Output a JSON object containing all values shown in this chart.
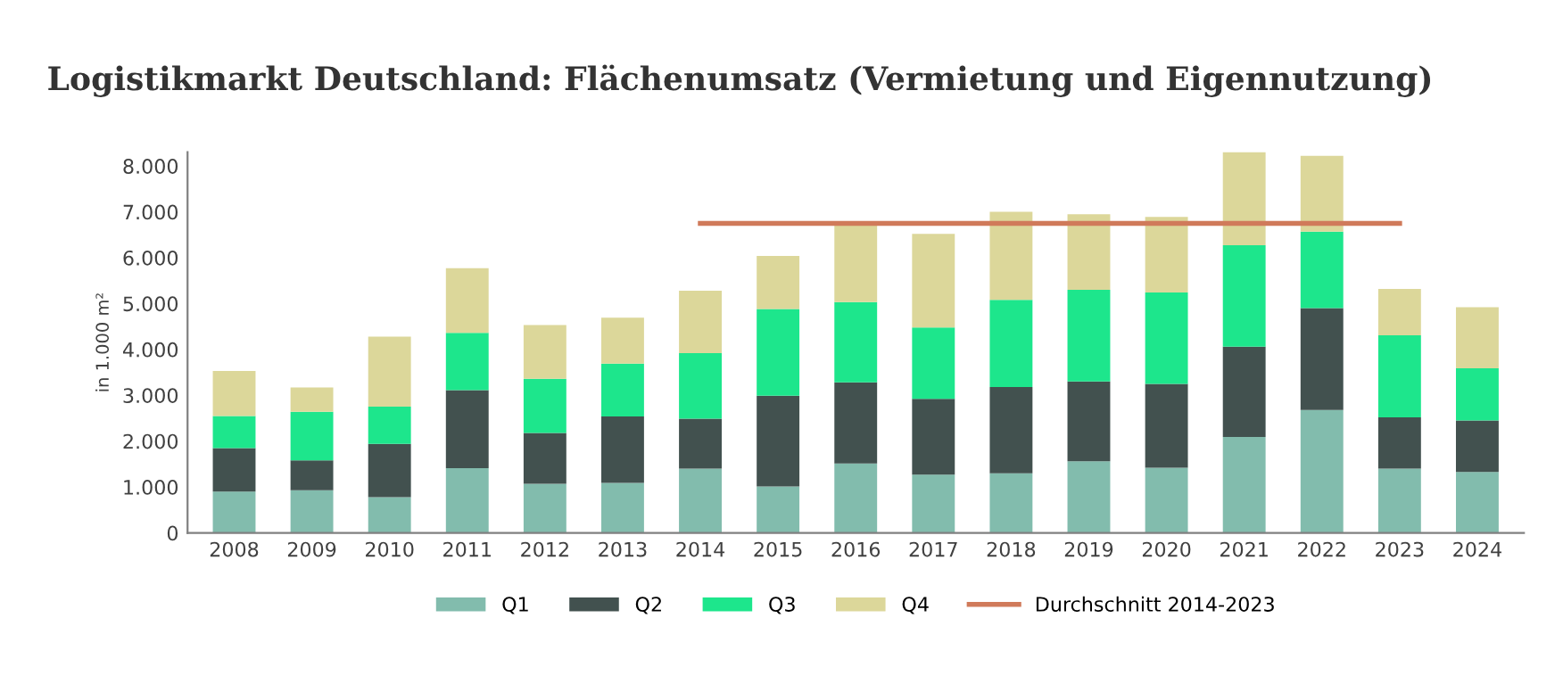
{
  "chart_data": {
    "type": "bar",
    "title": "Logistikmarkt Deutschland: Flächenumsatz (Vermietung und Eigennutzung)",
    "ylabel": "in 1.000 m²",
    "stacked": true,
    "grid": false,
    "legend": "bottom",
    "categories": [
      "2008",
      "2009",
      "2010",
      "2011",
      "2012",
      "2013",
      "2014",
      "2015",
      "2016",
      "2017",
      "2018",
      "2019",
      "2020",
      "2021",
      "2022",
      "2023",
      "2024"
    ],
    "ylim": [
      0,
      8300
    ],
    "yticks": [
      0,
      {
        "value": 1000,
        "label": "1.000"
      },
      {
        "value": 2000,
        "label": "2.000"
      },
      {
        "value": 3000,
        "label": "3.000"
      },
      {
        "value": 4000,
        "label": "4.000"
      },
      {
        "value": 5000,
        "label": "5.000"
      },
      {
        "value": 6000,
        "label": "6.000"
      },
      {
        "value": 7000,
        "label": "7.000"
      },
      {
        "value": 8000,
        "label": "8.000"
      }
    ],
    "series": [
      {
        "name": "Q1",
        "color": "#82bcad",
        "values": [
          900,
          930,
          780,
          1410,
          1070,
          1090,
          1400,
          1010,
          1510,
          1270,
          1300,
          1560,
          1420,
          2090,
          2680,
          1400,
          1330
        ]
      },
      {
        "name": "Q2",
        "color": "#42514f",
        "values": [
          950,
          650,
          1160,
          1700,
          1110,
          1450,
          1090,
          1980,
          1770,
          1650,
          1880,
          1740,
          1830,
          1970,
          2220,
          1120,
          1120
        ]
      },
      {
        "name": "Q3",
        "color": "#1de68c",
        "values": [
          700,
          1060,
          810,
          1250,
          1180,
          1150,
          1430,
          1890,
          1750,
          1560,
          1900,
          2000,
          1990,
          2210,
          1670,
          1790,
          1140
        ]
      },
      {
        "name": "Q4",
        "color": "#dcd79a",
        "values": [
          980,
          530,
          1530,
          1410,
          1170,
          1000,
          1360,
          1160,
          1670,
          2040,
          1920,
          1650,
          1650,
          2050,
          1650,
          1010,
          1330
        ]
      },
      {
        "name": "Durchschnitt 2014-2023",
        "type": "line",
        "color": "#d07a5a",
        "values": [
          null,
          null,
          null,
          null,
          null,
          null,
          6750,
          6750,
          6750,
          6750,
          6750,
          6750,
          6750,
          6750,
          6750,
          6750,
          null
        ]
      }
    ]
  }
}
